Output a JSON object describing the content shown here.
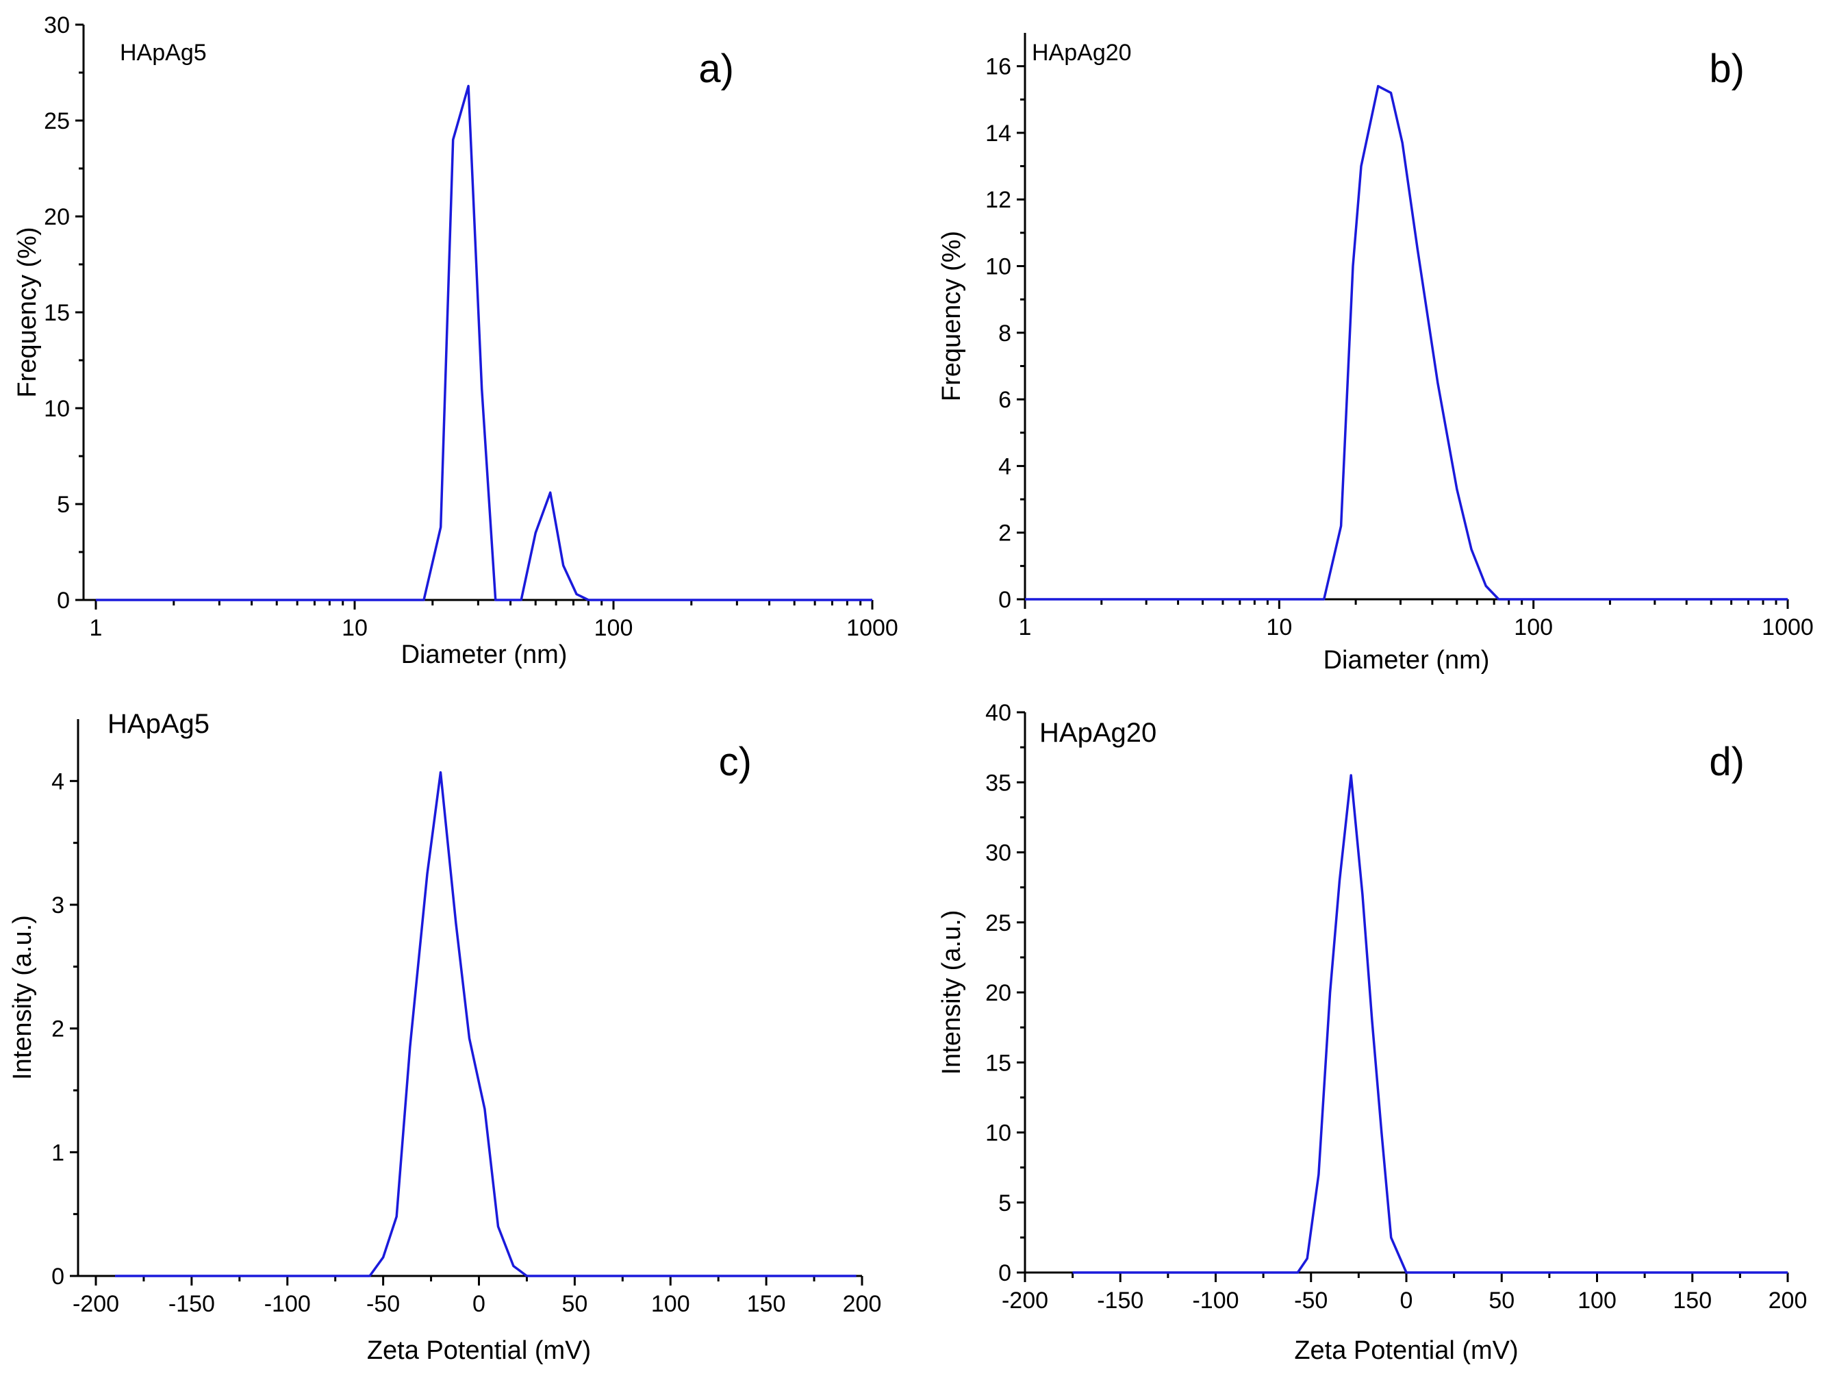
{
  "chart_data": [
    {
      "panel": "a)",
      "type": "line",
      "sample": "HApAg5",
      "xlabel": "Diameter (nm)",
      "ylabel": "Frequency (%)",
      "xscale": "log",
      "xlim": [
        1,
        1000
      ],
      "ylim": [
        0,
        30
      ],
      "xticks": [
        1,
        10,
        100,
        1000
      ],
      "xtick_labels": [
        "1",
        "10",
        "100",
        "1000"
      ],
      "yticks": [
        0,
        5,
        10,
        15,
        20,
        25,
        30
      ],
      "ytick_labels": [
        "0",
        "5",
        "10",
        "15",
        "20",
        "25",
        "30"
      ],
      "color": "#1a1adb",
      "x": [
        1,
        18.5,
        21.5,
        24,
        27.5,
        31,
        35,
        44,
        50,
        57,
        64,
        72,
        80,
        1000
      ],
      "y": [
        0,
        0,
        3.8,
        24,
        26.8,
        11,
        0,
        0,
        3.5,
        5.6,
        1.8,
        0.3,
        0,
        0
      ]
    },
    {
      "panel": "b)",
      "type": "line",
      "sample": "HApAg20",
      "xlabel": "Diameter (nm)",
      "ylabel": "Frequency (%)",
      "xscale": "log",
      "xlim": [
        1,
        1000
      ],
      "ylim": [
        0,
        17
      ],
      "xticks": [
        1,
        10,
        100,
        1000
      ],
      "xtick_labels": [
        "1",
        "10",
        "100",
        "1000"
      ],
      "yticks": [
        0,
        2,
        4,
        6,
        8,
        10,
        12,
        14,
        16
      ],
      "ytick_labels": [
        "0",
        "2",
        "4",
        "6",
        "8",
        "10",
        "12",
        "14",
        "16"
      ],
      "color": "#1a1adb",
      "x": [
        1,
        15,
        17.5,
        19.5,
        21,
        24.5,
        27.5,
        30.5,
        35,
        42,
        50,
        57,
        65,
        73,
        1000
      ],
      "y": [
        0,
        0,
        2.2,
        10,
        13,
        15.4,
        15.2,
        13.7,
        10.5,
        6.5,
        3.3,
        1.5,
        0.4,
        0,
        0
      ]
    },
    {
      "panel": "c)",
      "type": "line",
      "sample": "HApAg5",
      "xlabel": "Zeta Potential (mV)",
      "ylabel": "Intensity (a.u.)",
      "xlim": [
        -200,
        200
      ],
      "ylim": [
        0,
        4.5
      ],
      "xticks": [
        -200,
        -150,
        -100,
        -50,
        0,
        50,
        100,
        150,
        200
      ],
      "xtick_labels": [
        "-200",
        "-150",
        "-100",
        "-50",
        "0",
        "50",
        "100",
        "150",
        "200"
      ],
      "yticks": [
        0,
        1,
        2,
        3,
        4
      ],
      "ytick_labels": [
        "0",
        "1",
        "2",
        "3",
        "4"
      ],
      "color": "#1a1adb",
      "x": [
        -190,
        -57,
        -50,
        -43,
        -36,
        -27,
        -20,
        -12,
        -5,
        3,
        10,
        18,
        25,
        197
      ],
      "y": [
        0,
        0,
        0.15,
        0.48,
        1.85,
        3.25,
        4.07,
        2.85,
        1.92,
        1.35,
        0.4,
        0.08,
        0,
        0
      ]
    },
    {
      "panel": "d)",
      "type": "line",
      "sample": "HApAg20",
      "xlabel": "Zeta Potential (mV)",
      "ylabel": "Intensity (a.u.)",
      "xlim": [
        -200,
        200
      ],
      "ylim": [
        0,
        40
      ],
      "xticks": [
        -200,
        -150,
        -100,
        -50,
        0,
        50,
        100,
        150,
        200
      ],
      "xtick_labels": [
        "-200",
        "-150",
        "-100",
        "-50",
        "0",
        "50",
        "100",
        "150",
        "200"
      ],
      "yticks": [
        0,
        5,
        10,
        15,
        20,
        25,
        30,
        35,
        40
      ],
      "ytick_labels": [
        "0",
        "5",
        "10",
        "15",
        "20",
        "25",
        "30",
        "35",
        "40"
      ],
      "color": "#1a1adb",
      "x": [
        -175,
        -57,
        -52,
        -46,
        -40,
        -35,
        -29,
        -23,
        -18,
        -13,
        -8,
        0,
        200
      ],
      "y": [
        0,
        0,
        1,
        7,
        20,
        28,
        35.5,
        27,
        18,
        10,
        2.5,
        0,
        0
      ]
    }
  ]
}
